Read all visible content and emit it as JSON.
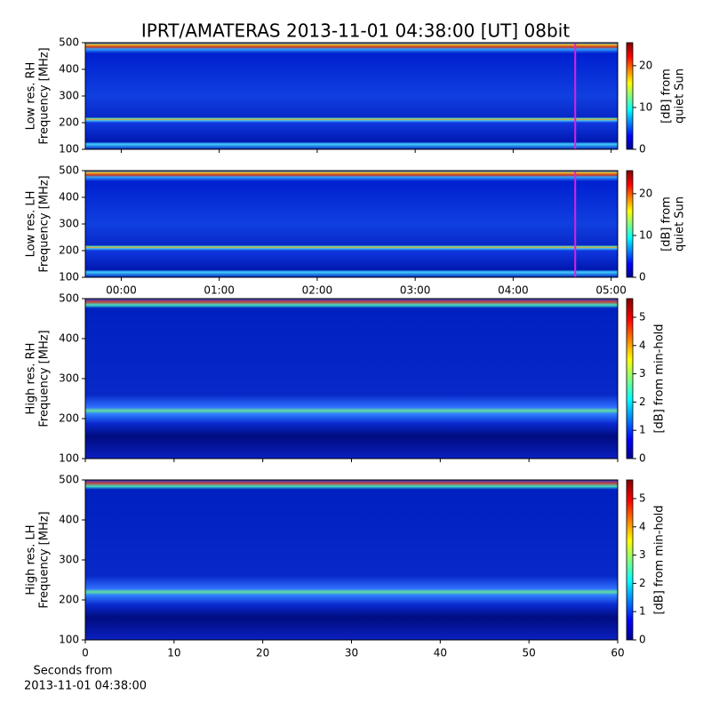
{
  "title": "IPRT/AMATERAS 2013-11-01 04:38:00 [UT]   08bit",
  "chart_data": [
    {
      "type": "spectrogram",
      "ylabel": [
        "Low res. RH",
        "Frequency [MHz]"
      ],
      "ylim": [
        100,
        500
      ],
      "yticks": [
        100,
        200,
        300,
        400,
        500
      ],
      "xlim": [
        -22,
        304
      ],
      "xticks": [
        0,
        60,
        120,
        180,
        240,
        300
      ],
      "xtick_labels": false,
      "marker_x": 278,
      "marker_color": "#e020e0",
      "colorbar": {
        "label": [
          "[dB] from",
          "quiet Sun"
        ],
        "ylim": [
          0,
          25.5
        ],
        "yticks": [
          0,
          10,
          20
        ]
      }
    },
    {
      "type": "spectrogram",
      "ylabel": [
        "Low res. LH",
        "Frequency [MHz]"
      ],
      "ylim": [
        100,
        500
      ],
      "yticks": [
        100,
        200,
        300,
        400,
        500
      ],
      "xlim": [
        -22,
        304
      ],
      "xticks": [
        {
          "value": 0,
          "label": "00:00"
        },
        {
          "value": 60,
          "label": "01:00"
        },
        {
          "value": 120,
          "label": "02:00"
        },
        {
          "value": 180,
          "label": "03:00"
        },
        {
          "value": 240,
          "label": "04:00"
        },
        {
          "value": 300,
          "label": "05:00"
        }
      ],
      "xtick_labels": true,
      "marker_x": 278,
      "marker_color": "#e020e0",
      "colorbar": {
        "label": [
          "[dB] from",
          "quiet Sun"
        ],
        "ylim": [
          0,
          25.5
        ],
        "yticks": [
          0,
          10,
          20
        ]
      }
    },
    {
      "type": "spectrogram",
      "ylabel": [
        "High res. RH",
        "Frequency [MHz]"
      ],
      "ylim": [
        100,
        500
      ],
      "yticks": [
        100,
        200,
        300,
        400,
        500
      ],
      "xlim": [
        0,
        60
      ],
      "xticks": [
        0,
        10,
        20,
        30,
        40,
        50,
        60
      ],
      "xtick_labels": false,
      "colorbar": {
        "label": [
          "[dB] from min-hold"
        ],
        "ylim": [
          0,
          5.66
        ],
        "yticks": [
          0,
          1,
          2,
          3,
          4,
          5
        ]
      }
    },
    {
      "type": "spectrogram",
      "ylabel": [
        "High res. LH",
        "Frequency [MHz]"
      ],
      "ylim": [
        100,
        500
      ],
      "yticks": [
        100,
        200,
        300,
        400,
        500
      ],
      "xlim": [
        0,
        60
      ],
      "xticks": [
        0,
        10,
        20,
        30,
        40,
        50,
        60
      ],
      "xtick_labels": true,
      "xlabel": [
        "Seconds from",
        "2013-11-01 04:38:00"
      ],
      "colorbar": {
        "label": [
          "[dB] from min-hold"
        ],
        "ylim": [
          0,
          5.66
        ],
        "yticks": [
          0,
          1,
          2,
          3,
          4,
          5
        ]
      }
    }
  ]
}
